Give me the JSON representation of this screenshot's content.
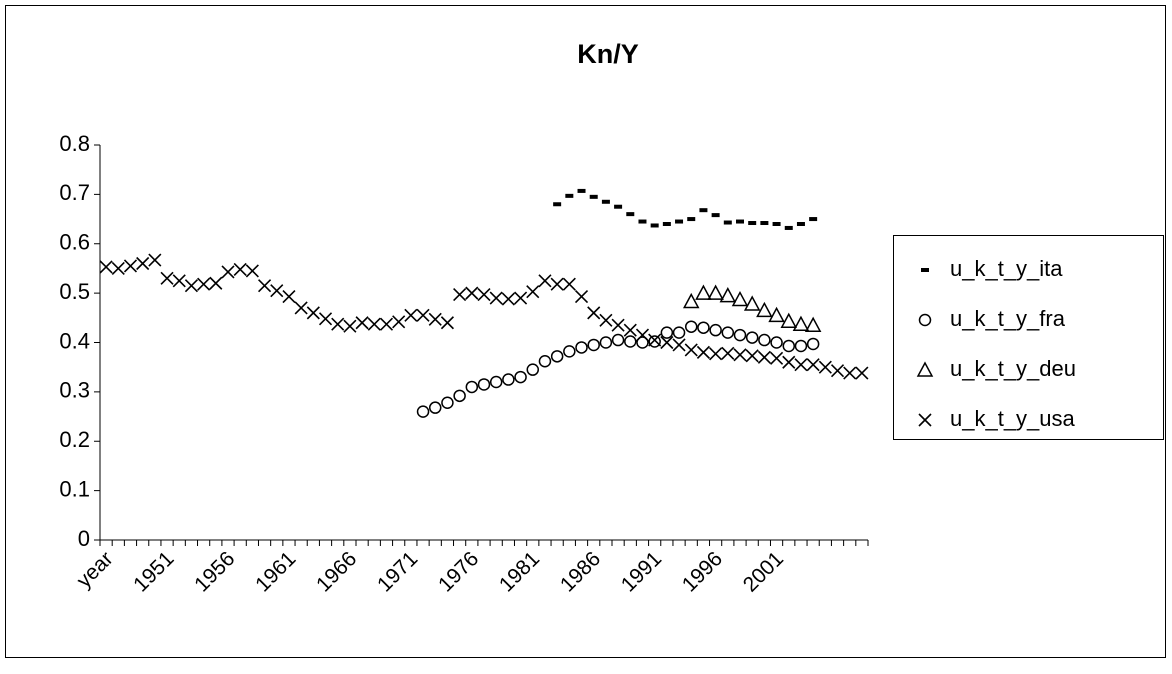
{
  "chart_data": {
    "type": "scatter",
    "title": "Kn/Y",
    "categories": [
      "year",
      null,
      null,
      null,
      null,
      "1951",
      null,
      null,
      null,
      null,
      "1956",
      null,
      null,
      null,
      null,
      "1961",
      null,
      null,
      null,
      null,
      "1966",
      null,
      null,
      null,
      null,
      "1971",
      null,
      null,
      null,
      null,
      "1976",
      null,
      null,
      null,
      null,
      "1981",
      null,
      null,
      null,
      null,
      "1986",
      null,
      null,
      null,
      null,
      "1991",
      null,
      null,
      null,
      null,
      "1996",
      null,
      null,
      null,
      null,
      "2001",
      null,
      null,
      null,
      null,
      null,
      null,
      null
    ],
    "ylim": [
      0,
      0.8
    ],
    "yticks": [
      0,
      0.1,
      0.2,
      0.3,
      0.4,
      0.5,
      0.6,
      0.7,
      0.8
    ],
    "legend": "right",
    "series": [
      {
        "name": "u_k_t_y_ita",
        "color": "#000000",
        "marker": "dash",
        "values": [
          null,
          null,
          null,
          null,
          null,
          null,
          null,
          null,
          null,
          null,
          null,
          null,
          null,
          null,
          null,
          null,
          null,
          null,
          null,
          null,
          null,
          null,
          null,
          null,
          null,
          null,
          null,
          null,
          null,
          null,
          null,
          null,
          null,
          null,
          null,
          null,
          null,
          0.68,
          0.697,
          0.707,
          0.695,
          0.685,
          0.675,
          0.66,
          0.645,
          0.637,
          0.64,
          0.645,
          0.65,
          0.668,
          0.658,
          0.643,
          0.645,
          0.642,
          0.642,
          0.64,
          0.632,
          0.64,
          0.65,
          null,
          null,
          null,
          null
        ]
      },
      {
        "name": "u_k_t_y_fra",
        "color": "#000000",
        "marker": "circle",
        "values": [
          null,
          null,
          null,
          null,
          null,
          null,
          null,
          null,
          null,
          null,
          null,
          null,
          null,
          null,
          null,
          null,
          null,
          null,
          null,
          null,
          null,
          null,
          null,
          null,
          null,
          null,
          0.26,
          0.268,
          0.278,
          0.292,
          0.31,
          0.315,
          0.32,
          0.325,
          0.33,
          0.345,
          0.362,
          0.372,
          0.382,
          0.39,
          0.395,
          0.4,
          0.405,
          0.402,
          0.4,
          0.402,
          0.42,
          0.42,
          0.432,
          0.43,
          0.425,
          0.42,
          0.415,
          0.41,
          0.405,
          0.4,
          0.393,
          0.393,
          0.397,
          null,
          null,
          null,
          null
        ]
      },
      {
        "name": "u_k_t_y_deu",
        "color": "#000000",
        "marker": "triangle",
        "values": [
          null,
          null,
          null,
          null,
          null,
          null,
          null,
          null,
          null,
          null,
          null,
          null,
          null,
          null,
          null,
          null,
          null,
          null,
          null,
          null,
          null,
          null,
          null,
          null,
          null,
          null,
          null,
          null,
          null,
          null,
          null,
          null,
          null,
          null,
          null,
          null,
          null,
          null,
          null,
          null,
          null,
          null,
          null,
          null,
          null,
          null,
          null,
          null,
          0.483,
          0.5,
          0.5,
          0.495,
          0.487,
          0.478,
          0.465,
          0.455,
          0.443,
          0.437,
          0.435,
          null,
          null,
          null,
          null
        ]
      },
      {
        "name": "u_k_t_y_usa",
        "color": "#000000",
        "marker": "x",
        "values": [
          0.553,
          0.55,
          0.555,
          0.56,
          0.567,
          0.53,
          0.525,
          0.515,
          0.518,
          0.52,
          0.543,
          0.548,
          0.545,
          0.515,
          0.505,
          0.493,
          0.47,
          0.46,
          0.448,
          0.437,
          0.433,
          0.44,
          0.437,
          0.437,
          0.442,
          0.455,
          0.455,
          0.447,
          0.44,
          0.497,
          0.5,
          0.497,
          0.49,
          0.488,
          0.49,
          0.503,
          0.525,
          0.518,
          0.518,
          0.493,
          0.46,
          0.445,
          0.435,
          0.425,
          0.415,
          0.405,
          0.4,
          0.395,
          0.385,
          0.38,
          0.377,
          0.378,
          0.375,
          0.373,
          0.37,
          0.368,
          0.36,
          0.355,
          0.355,
          0.35,
          0.343,
          0.338,
          0.338
        ]
      }
    ]
  }
}
